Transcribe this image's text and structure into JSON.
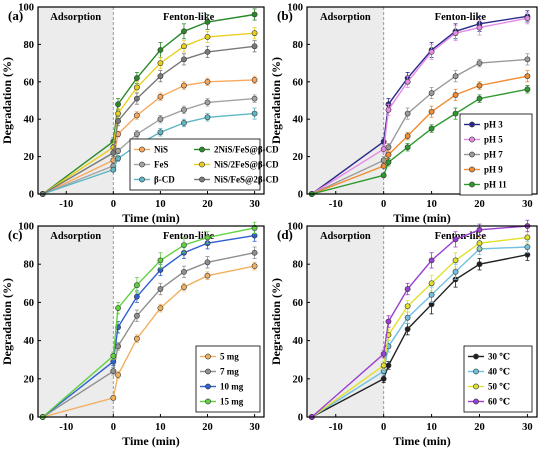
{
  "figure": {
    "panels": [
      {
        "label": "(a)",
        "phase_left": "Adsorption",
        "phase_right": "Fenton-like",
        "xlabel": "Time (min)",
        "ylabel": "Degradation (%)"
      },
      {
        "label": "(b)",
        "phase_left": "Adsorption",
        "phase_right": "Fenton-like",
        "xlabel": "Time (min)",
        "ylabel": "Degradation (%)"
      },
      {
        "label": "(c)",
        "phase_left": "Adsorption",
        "phase_right": "Fenton-like",
        "xlabel": "Time (min)",
        "ylabel": "Degradation (%)"
      },
      {
        "label": "(d)",
        "phase_left": "Adsorption",
        "phase_right": "Fenton-like",
        "xlabel": "Time (min)",
        "ylabel": "Degradation (%)"
      }
    ]
  },
  "chart_data": [
    {
      "type": "line",
      "title": "(a)",
      "xlabel": "Time (min)",
      "ylabel": "Degradation (%)",
      "xlim": [
        -16,
        32
      ],
      "ylim": [
        0,
        100
      ],
      "xticks": [
        -10,
        0,
        10,
        20,
        30
      ],
      "yticks": [
        0,
        20,
        40,
        60,
        80,
        100
      ],
      "shaded_region": [
        -16,
        0
      ],
      "x": [
        -15,
        0,
        1,
        5,
        10,
        15,
        20,
        30
      ],
      "legend": {
        "placement": "bottom-right",
        "columns": 2
      },
      "series": [
        {
          "name": "NiS",
          "color": "#f7a85c",
          "values": [
            0,
            18,
            32,
            42,
            52,
            58,
            60,
            61
          ],
          "err": [
            0,
            1,
            1.5,
            2,
            2,
            2,
            2,
            2
          ]
        },
        {
          "name": "FeS",
          "color": "#a3a3a3",
          "values": [
            0,
            15,
            23,
            32,
            40,
            45,
            49,
            51
          ],
          "err": [
            0,
            1,
            1.5,
            2,
            2,
            2,
            2,
            2
          ]
        },
        {
          "name": "β-CD",
          "color": "#5fb7c4",
          "values": [
            0,
            13,
            19,
            26,
            33,
            38,
            41,
            43
          ],
          "err": [
            0,
            1,
            1.5,
            2,
            2,
            2,
            2,
            3
          ]
        },
        {
          "name": "2NiS/FeS@β-CD",
          "color": "#2a8a2a",
          "values": [
            0,
            28,
            48,
            62,
            77,
            87,
            92,
            96
          ],
          "err": [
            0,
            2,
            3,
            3,
            4,
            4,
            4,
            3
          ]
        },
        {
          "name": "NiS/2FeS@β-CD",
          "color": "#e8d020",
          "values": [
            0,
            25,
            43,
            57,
            70,
            79,
            84,
            86
          ],
          "err": [
            0,
            2,
            2.5,
            3,
            3,
            3,
            3,
            3
          ]
        },
        {
          "name": "NiS/FeS@2β-CD",
          "color": "#7a7a7a",
          "values": [
            0,
            22,
            39,
            51,
            63,
            72,
            76,
            79
          ],
          "err": [
            0,
            2,
            2.5,
            3,
            3,
            3,
            3,
            3
          ]
        }
      ]
    },
    {
      "type": "line",
      "title": "(b)",
      "xlabel": "Time (min)",
      "ylabel": "Degradation (%)",
      "xlim": [
        -16,
        32
      ],
      "ylim": [
        0,
        100
      ],
      "xticks": [
        -10,
        0,
        10,
        20,
        30
      ],
      "yticks": [
        0,
        20,
        40,
        60,
        80,
        100
      ],
      "shaded_region": [
        -16,
        0
      ],
      "x": [
        -15,
        0,
        1,
        5,
        10,
        15,
        20,
        30
      ],
      "legend": {
        "placement": "bottom-right",
        "columns": 1
      },
      "series": [
        {
          "name": "pH 3",
          "color": "#2a2a8c",
          "values": [
            0,
            28,
            48,
            62,
            77,
            87,
            91,
            95
          ],
          "err": [
            0,
            2,
            3,
            3,
            4,
            4,
            4,
            3
          ]
        },
        {
          "name": "pH 5",
          "color": "#e68ae6",
          "values": [
            0,
            24,
            45,
            60,
            76,
            86,
            89,
            94
          ],
          "err": [
            0,
            2,
            3,
            3,
            4,
            4,
            4,
            3
          ]
        },
        {
          "name": "pH 7",
          "color": "#9a9a9a",
          "values": [
            0,
            18,
            25,
            43,
            54,
            63,
            70,
            72
          ],
          "err": [
            0,
            2,
            2,
            3,
            3,
            3,
            2,
            3
          ]
        },
        {
          "name": "pH 9",
          "color": "#f08c33",
          "values": [
            0,
            15,
            21,
            31,
            44,
            53,
            58,
            63
          ],
          "err": [
            0,
            1,
            2,
            2,
            3,
            3,
            2,
            3
          ]
        },
        {
          "name": "pH 11",
          "color": "#2e9a2e",
          "values": [
            0,
            10,
            17,
            25,
            35,
            43,
            51,
            56
          ],
          "err": [
            0,
            1,
            2,
            2,
            2,
            3,
            2,
            2
          ]
        }
      ]
    },
    {
      "type": "line",
      "title": "(c)",
      "xlabel": "Time (min)",
      "ylabel": "Degradation (%)",
      "xlim": [
        -16,
        32
      ],
      "ylim": [
        0,
        100
      ],
      "xticks": [
        -10,
        0,
        10,
        20,
        30
      ],
      "yticks": [
        0,
        20,
        40,
        60,
        80,
        100
      ],
      "shaded_region": [
        -16,
        0
      ],
      "x": [
        -15,
        0,
        1,
        5,
        10,
        15,
        20,
        30
      ],
      "legend": {
        "placement": "bottom-right",
        "columns": 1
      },
      "series": [
        {
          "name": "5 mg",
          "color": "#f0b060",
          "values": [
            0,
            10,
            22,
            41,
            57,
            68,
            74,
            79
          ],
          "err": [
            0,
            1,
            2,
            2,
            2,
            2,
            2,
            2
          ]
        },
        {
          "name": "7 mg",
          "color": "#909090",
          "values": [
            0,
            24,
            37,
            53,
            67,
            76,
            81,
            86
          ],
          "err": [
            0,
            2,
            2,
            3,
            3,
            3,
            3,
            3
          ]
        },
        {
          "name": "10 mg",
          "color": "#3060d0",
          "values": [
            0,
            29,
            47,
            63,
            77,
            86,
            91,
            95
          ],
          "err": [
            0,
            2,
            3,
            3,
            3,
            3,
            3,
            3
          ]
        },
        {
          "name": "15 mg",
          "color": "#60d040",
          "values": [
            0,
            32,
            57,
            69,
            82,
            90,
            94,
            99
          ],
          "err": [
            0,
            2,
            3,
            4,
            4,
            4,
            3,
            3
          ]
        }
      ]
    },
    {
      "type": "line",
      "title": "(d)",
      "xlabel": "Time (min)",
      "ylabel": "Degradation (%)",
      "xlim": [
        -16,
        32
      ],
      "ylim": [
        0,
        100
      ],
      "xticks": [
        -10,
        0,
        10,
        20,
        30
      ],
      "yticks": [
        0,
        20,
        40,
        60,
        80,
        100
      ],
      "shaded_region": [
        -16,
        0
      ],
      "x": [
        -15,
        0,
        1,
        5,
        10,
        15,
        20,
        30
      ],
      "legend": {
        "placement": "bottom-right",
        "columns": 1
      },
      "series": [
        {
          "name": "30 ℃",
          "color": "#202020",
          "values": [
            0,
            20,
            27,
            46,
            59,
            72,
            80,
            85
          ],
          "err": [
            0,
            2,
            2,
            3,
            5,
            4,
            3,
            3
          ]
        },
        {
          "name": "40 ℃",
          "color": "#70c0e0",
          "values": [
            0,
            24,
            37,
            52,
            64,
            76,
            88,
            89
          ],
          "err": [
            0,
            2,
            3,
            3,
            4,
            4,
            3,
            3
          ]
        },
        {
          "name": "50 ℃",
          "color": "#e0e030",
          "values": [
            0,
            27,
            43,
            58,
            70,
            82,
            91,
            94
          ],
          "err": [
            0,
            2,
            3,
            3,
            4,
            4,
            3,
            3
          ]
        },
        {
          "name": "60 ℃",
          "color": "#9a40d0",
          "values": [
            0,
            33,
            50,
            67,
            82,
            93,
            98,
            100
          ],
          "err": [
            0,
            2,
            3,
            3,
            4,
            4,
            3,
            3
          ]
        }
      ]
    }
  ]
}
